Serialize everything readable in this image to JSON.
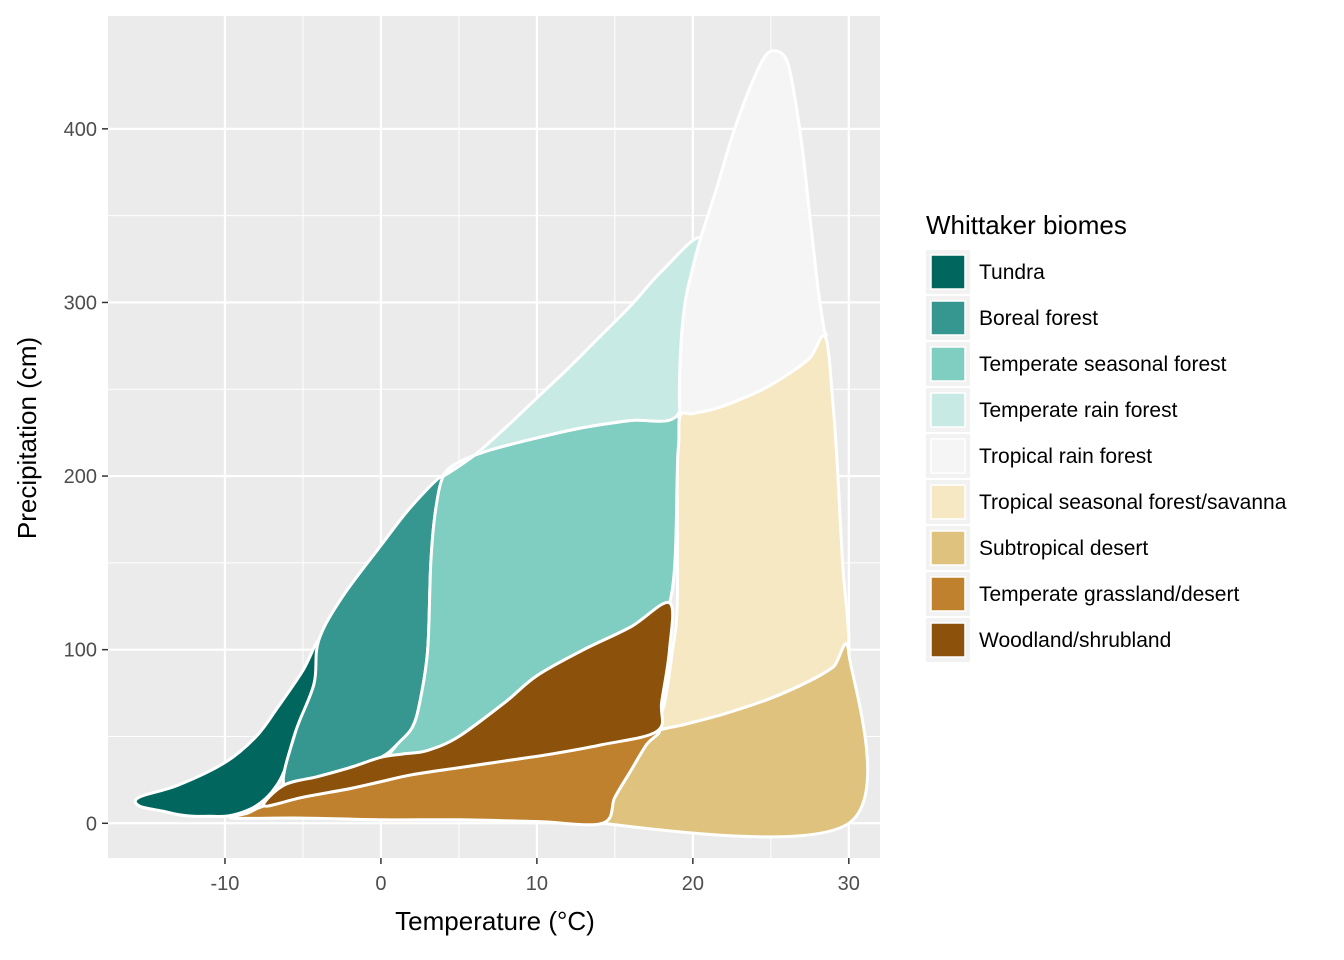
{
  "chart_data": {
    "type": "area",
    "xlabel": "Temperature (°C)",
    "ylabel": "Precipitation (cm)",
    "xlim": [
      -17.5,
      32
    ],
    "ylim": [
      -20,
      465
    ],
    "x_ticks": [
      -10,
      0,
      10,
      20,
      30
    ],
    "y_ticks": [
      0,
      100,
      200,
      300,
      400
    ],
    "grid": true,
    "panel_background": "#EBEBEB",
    "legend": {
      "title": "Whittaker biomes",
      "position": "right"
    },
    "series": [
      {
        "name": "Tundra",
        "color": "#01665E",
        "x": [
          -15.5,
          -13,
          -10,
          -8,
          -6.6,
          -5,
          -4,
          -4.3,
          -5.5,
          -6.2,
          -7,
          -8,
          -9,
          -10,
          -11,
          -12,
          -13,
          -14,
          -15.5
        ],
        "y": [
          15,
          22,
          35,
          50,
          67,
          88,
          105,
          80,
          52,
          30,
          18,
          10,
          6,
          4,
          4,
          4,
          5,
          7,
          10
        ]
      },
      {
        "name": "Boreal forest",
        "color": "#35978F",
        "x": [
          -4,
          -2.5,
          0,
          2,
          4,
          3.5,
          3.2,
          3,
          2.5,
          2,
          1,
          0,
          -2,
          -4,
          -6.2,
          -5.5,
          -4.3
        ],
        "y": [
          105,
          130,
          160,
          183,
          200,
          180,
          150,
          100,
          70,
          55,
          45,
          38,
          32,
          27,
          22,
          52,
          80
        ]
      },
      {
        "name": "Temperate seasonal forest",
        "color": "#80CDC1",
        "x": [
          4,
          5,
          7,
          10,
          13,
          16,
          19,
          19,
          18.5,
          16,
          13,
          10,
          8,
          5,
          3,
          1.5,
          0.5,
          1,
          2,
          2.5,
          3,
          3.2,
          3.5
        ],
        "y": [
          200,
          208,
          215,
          222,
          228,
          232,
          235,
          200,
          127,
          113,
          100,
          85,
          70,
          50,
          40,
          40,
          38,
          45,
          55,
          70,
          100,
          150,
          180
        ]
      },
      {
        "name": "Temperate rain forest",
        "color": "#C7EAE5",
        "x": [
          4,
          6,
          8,
          10,
          12,
          14,
          16,
          18,
          20.5,
          20,
          19.5,
          19,
          16,
          13,
          10,
          7,
          5
        ],
        "y": [
          200,
          212,
          228,
          245,
          262,
          280,
          298,
          318,
          337,
          300,
          270,
          235,
          232,
          228,
          222,
          215,
          208
        ]
      },
      {
        "name": "Tropical rain forest",
        "color": "#F5F5F5",
        "x": [
          20.5,
          21.5,
          22.5,
          23.5,
          24.5,
          25.2,
          26,
          26.5,
          27,
          27.5,
          28,
          28.4,
          28.5,
          27.5,
          26,
          24.5,
          23,
          21.5,
          20,
          19.2,
          19.2,
          19.5,
          20
        ],
        "y": [
          337,
          365,
          395,
          420,
          440,
          445,
          440,
          420,
          390,
          350,
          310,
          285,
          280,
          268,
          258,
          250,
          244,
          239,
          236,
          235,
          270,
          300,
          320
        ]
      },
      {
        "name": "Tropical seasonal forest/savanna",
        "color": "#F6E8C3",
        "x": [
          19.2,
          20,
          21.5,
          23,
          24.5,
          26,
          27.5,
          28.5,
          29,
          29.3,
          29.6,
          30,
          29,
          27.5,
          25,
          22,
          19.5,
          17.7,
          18.2,
          18.7,
          19,
          19,
          19.1
        ],
        "y": [
          235,
          236,
          239,
          244,
          250,
          258,
          268,
          280,
          240,
          200,
          150,
          98,
          90,
          82,
          72,
          62,
          55,
          53,
          70,
          100,
          127,
          200,
          220
        ]
      },
      {
        "name": "Subtropical desert",
        "color": "#DFC27D",
        "x": [
          17.7,
          19.5,
          22,
          25,
          27.5,
          29,
          30,
          30,
          14.2,
          15,
          16,
          17
        ],
        "y": [
          53,
          57,
          63,
          72,
          82,
          90,
          98,
          0,
          0,
          15,
          30,
          45
        ]
      },
      {
        "name": "Temperate grassland/desert",
        "color": "#BF812D",
        "x": [
          -7.5,
          -5,
          -2,
          0,
          2,
          5,
          8,
          11,
          14,
          17.7,
          17,
          16,
          15,
          14.2,
          10,
          5,
          0,
          -5,
          -9.5,
          -8.5
        ],
        "y": [
          10,
          15,
          20,
          24,
          28,
          32,
          36,
          40,
          45,
          53,
          45,
          30,
          15,
          0,
          1,
          2,
          2,
          3,
          3,
          6
        ]
      },
      {
        "name": "Woodland/shrubland",
        "color": "#8C510A",
        "x": [
          -6.2,
          -4,
          -2,
          0,
          1.5,
          3,
          5,
          8,
          10,
          13,
          16,
          18.5,
          18.5,
          18,
          17.7,
          14,
          11,
          8,
          5,
          2,
          0,
          -2,
          -5,
          -7.5
        ],
        "y": [
          22,
          27,
          32,
          38,
          40,
          42,
          50,
          70,
          85,
          100,
          113,
          127,
          100,
          70,
          53,
          45,
          40,
          36,
          32,
          28,
          24,
          20,
          15,
          10
        ]
      }
    ]
  }
}
